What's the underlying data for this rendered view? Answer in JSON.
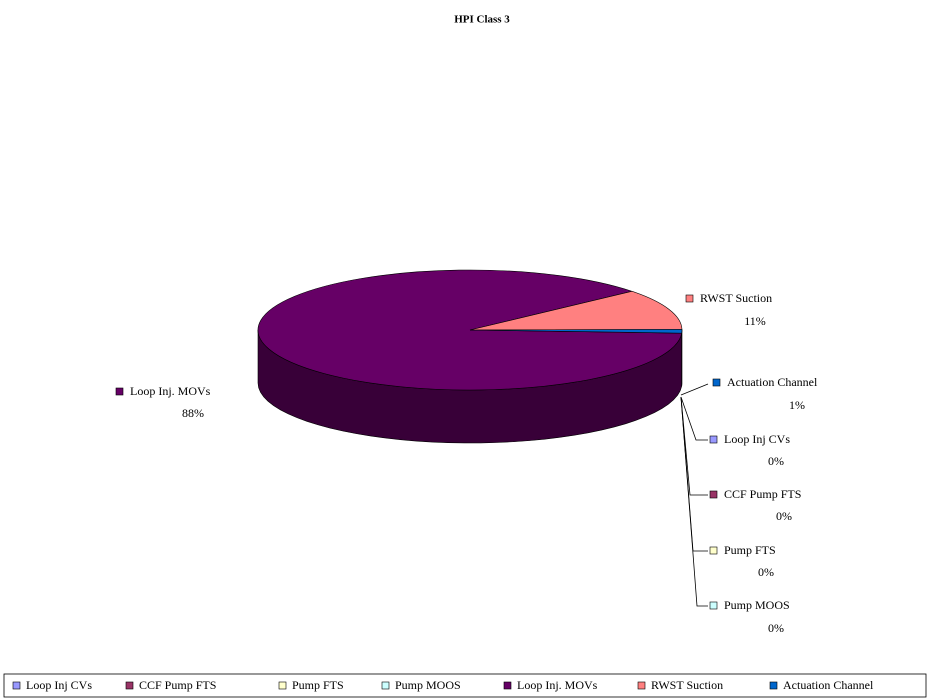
{
  "chart_data": {
    "type": "pie",
    "title": "HPI Class 3",
    "categories": [
      "Loop Inj CVs",
      "CCF Pump FTS",
      "Pump FTS",
      "Pump MOOS",
      "Loop Inj. MOVs",
      "RWST Suction",
      "Actuation Channel"
    ],
    "values": [
      0,
      0,
      0,
      0,
      88,
      11,
      1
    ],
    "value_labels": [
      "0%",
      "0%",
      "0%",
      "0%",
      "88%",
      "11%",
      "1%"
    ],
    "colors": [
      "#9999ff",
      "#993366",
      "#ffffcc",
      "#ccffff",
      "#660066",
      "#ff8080",
      "#0066cc"
    ],
    "legend": "bottom"
  }
}
